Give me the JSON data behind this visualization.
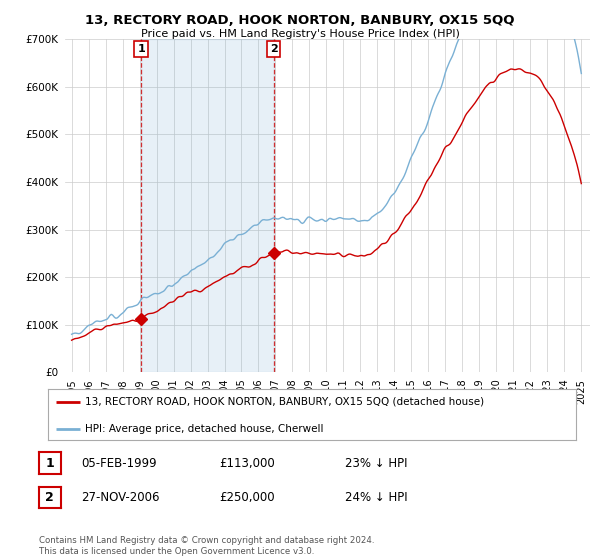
{
  "title": "13, RECTORY ROAD, HOOK NORTON, BANBURY, OX15 5QQ",
  "subtitle": "Price paid vs. HM Land Registry's House Price Index (HPI)",
  "legend_label_red": "13, RECTORY ROAD, HOOK NORTON, BANBURY, OX15 5QQ (detached house)",
  "legend_label_blue": "HPI: Average price, detached house, Cherwell",
  "transaction1_date": "05-FEB-1999",
  "transaction1_price": "£113,000",
  "transaction1_hpi": "23% ↓ HPI",
  "transaction2_date": "27-NOV-2006",
  "transaction2_price": "£250,000",
  "transaction2_hpi": "24% ↓ HPI",
  "footnote": "Contains HM Land Registry data © Crown copyright and database right 2024.\nThis data is licensed under the Open Government Licence v3.0.",
  "ylim": [
    0,
    700000
  ],
  "yticks": [
    0,
    100000,
    200000,
    300000,
    400000,
    500000,
    600000,
    700000
  ],
  "background_color": "#ffffff",
  "grid_color": "#cccccc",
  "red_color": "#cc0000",
  "blue_color": "#7ab0d4",
  "shade_color": "#ddeeff",
  "marker1_x": 1999.09,
  "marker1_y": 113000,
  "marker2_x": 2006.9,
  "marker2_y": 250000,
  "vline1_x": 1999.09,
  "vline2_x": 2006.9,
  "xmin": 1995,
  "xmax": 2025
}
